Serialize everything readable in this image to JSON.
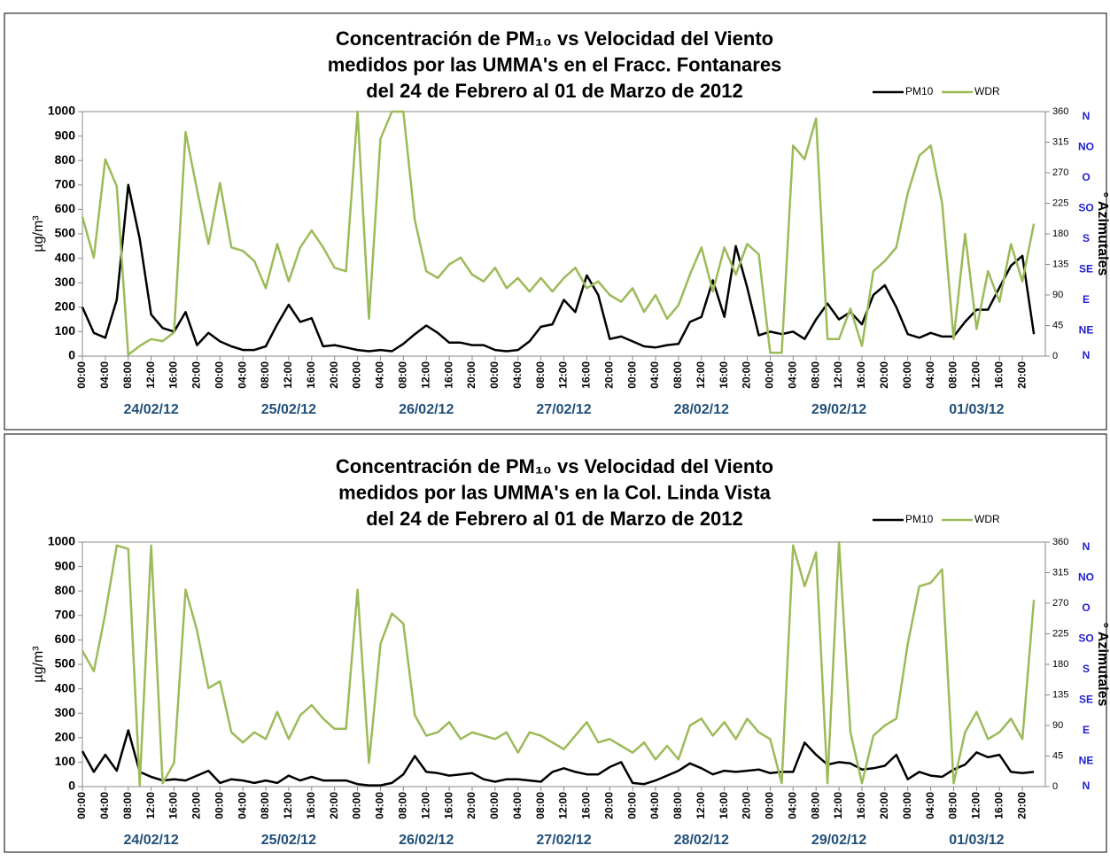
{
  "chart_data": [
    {
      "type": "line",
      "title": [
        "Concentración de PM₁₀ vs Velocidad del Viento",
        "medidos por las UMMA's en el Fracc. Fontanares",
        "del 24 de Febrero al 01 de Marzo de 2012"
      ],
      "y_label": "µg/m³",
      "y2_label": "° Azimutales",
      "categories": [
        "00:00",
        null,
        "04:00",
        null,
        "08:00",
        null,
        "12:00",
        null,
        "16:00",
        null,
        "20:00",
        null,
        "00:00",
        null,
        "04:00",
        null,
        "08:00",
        null,
        "12:00",
        null,
        "16:00",
        null,
        "20:00",
        null,
        "00:00",
        null,
        "04:00",
        null,
        "08:00",
        null,
        "12:00",
        null,
        "16:00",
        null,
        "20:00",
        null,
        "00:00",
        null,
        "04:00",
        null,
        "08:00",
        null,
        "12:00",
        null,
        "16:00",
        null,
        "20:00",
        null,
        "00:00",
        null,
        "04:00",
        null,
        "08:00",
        null,
        "12:00",
        null,
        "16:00",
        null,
        "20:00",
        null,
        "00:00",
        null,
        "04:00",
        null,
        "08:00",
        null,
        "12:00",
        null,
        "16:00",
        null,
        "20:00",
        null,
        "00:00",
        null,
        "04:00",
        null,
        "08:00",
        null,
        "12:00",
        null,
        "16:00",
        null,
        "20:00",
        null
      ],
      "groups": [
        "24/02/12",
        "25/02/12",
        "26/02/12",
        "27/02/12",
        "28/02/12",
        "29/02/12",
        "01/03/12"
      ],
      "series": [
        {
          "name": "PM10",
          "color": "#000000",
          "values": [
            200,
            95,
            75,
            230,
            700,
            480,
            170,
            115,
            100,
            180,
            45,
            95,
            60,
            40,
            25,
            25,
            40,
            130,
            210,
            140,
            155,
            40,
            45,
            35,
            25,
            20,
            25,
            20,
            50,
            90,
            125,
            95,
            55,
            55,
            45,
            45,
            25,
            20,
            25,
            60,
            120,
            130,
            230,
            180,
            330,
            250,
            70,
            80,
            60,
            40,
            35,
            45,
            50,
            140,
            160,
            310,
            160,
            450,
            280,
            85,
            100,
            90,
            100,
            70,
            150,
            215,
            150,
            180,
            130,
            250,
            290,
            200,
            90,
            75,
            95,
            80,
            80,
            140,
            190,
            190,
            280,
            370,
            410,
            90
          ]
        },
        {
          "name": "WDR",
          "color": "#9bbb59",
          "axis": "y2",
          "values": [
            205,
            145,
            290,
            250,
            2,
            15,
            25,
            22,
            35,
            330,
            245,
            165,
            255,
            160,
            155,
            140,
            100,
            165,
            110,
            160,
            185,
            160,
            130,
            125,
            360,
            55,
            320,
            360,
            360,
            200,
            125,
            115,
            135,
            145,
            120,
            110,
            130,
            100,
            115,
            95,
            115,
            95,
            115,
            130,
            100,
            110,
            90,
            80,
            100,
            65,
            90,
            55,
            75,
            120,
            160,
            95,
            160,
            120,
            165,
            150,
            5,
            5,
            310,
            290,
            350,
            25,
            25,
            70,
            15,
            125,
            140,
            160,
            240,
            295,
            310,
            225,
            25,
            180,
            40,
            125,
            80,
            165,
            110,
            195
          ]
        }
      ],
      "ylim": [
        0,
        1000
      ],
      "yticks": [
        0,
        100,
        200,
        300,
        400,
        500,
        600,
        700,
        800,
        900,
        1000
      ],
      "y2lim": [
        0,
        360
      ],
      "y2ticks": [
        0,
        45,
        90,
        135,
        180,
        225,
        270,
        315,
        360
      ],
      "y2_directions": [
        "N",
        "NE",
        "E",
        "SE",
        "S",
        "SO",
        "O",
        "NO",
        "N"
      ]
    },
    {
      "type": "line",
      "title": [
        "Concentración de PM₁₀ vs Velocidad del Viento",
        "medidos por las UMMA's en la Col. Linda Vista",
        "del 24 de Febrero al 01 de Marzo de 2012"
      ],
      "y_label": "µg/m³",
      "y2_label": "° Azimutales",
      "categories": [
        "00:00",
        null,
        "04:00",
        null,
        "08:00",
        null,
        "12:00",
        null,
        "16:00",
        null,
        "20:00",
        null,
        "00:00",
        null,
        "04:00",
        null,
        "08:00",
        null,
        "12:00",
        null,
        "16:00",
        null,
        "20:00",
        null,
        "00:00",
        null,
        "04:00",
        null,
        "08:00",
        null,
        "12:00",
        null,
        "16:00",
        null,
        "20:00",
        null,
        "00:00",
        null,
        "04:00",
        null,
        "08:00",
        null,
        "12:00",
        null,
        "16:00",
        null,
        "20:00",
        null,
        "00:00",
        null,
        "04:00",
        null,
        "08:00",
        null,
        "12:00",
        null,
        "16:00",
        null,
        "20:00",
        null,
        "00:00",
        null,
        "04:00",
        null,
        "08:00",
        null,
        "12:00",
        null,
        "16:00",
        null,
        "20:00",
        null,
        "00:00",
        null,
        "04:00",
        null,
        "08:00",
        null,
        "12:00",
        null,
        "16:00",
        null,
        "20:00",
        null
      ],
      "groups": [
        "24/02/12",
        "25/02/12",
        "26/02/12",
        "27/02/12",
        "28/02/12",
        "29/02/12",
        "01/03/12"
      ],
      "series": [
        {
          "name": "PM10",
          "color": "#000000",
          "values": [
            145,
            60,
            130,
            65,
            230,
            60,
            40,
            25,
            30,
            25,
            45,
            65,
            15,
            30,
            25,
            15,
            25,
            15,
            45,
            25,
            40,
            25,
            25,
            25,
            10,
            5,
            5,
            15,
            50,
            125,
            60,
            55,
            45,
            50,
            55,
            30,
            20,
            30,
            30,
            25,
            20,
            60,
            75,
            60,
            50,
            50,
            80,
            100,
            15,
            10,
            25,
            45,
            65,
            95,
            75,
            50,
            65,
            60,
            65,
            70,
            55,
            60,
            60,
            180,
            130,
            90,
            100,
            95,
            70,
            75,
            85,
            130,
            30,
            60,
            45,
            40,
            70,
            90,
            140,
            120,
            130,
            60,
            55,
            60
          ]
        },
        {
          "name": "WDR",
          "color": "#9bbb59",
          "axis": "y2",
          "values": [
            200,
            170,
            255,
            355,
            350,
            2,
            355,
            5,
            35,
            290,
            230,
            145,
            155,
            80,
            65,
            80,
            70,
            110,
            70,
            105,
            120,
            100,
            85,
            85,
            290,
            35,
            210,
            255,
            240,
            105,
            75,
            80,
            95,
            70,
            80,
            75,
            70,
            80,
            50,
            80,
            75,
            65,
            55,
            75,
            95,
            65,
            70,
            60,
            50,
            65,
            40,
            60,
            40,
            90,
            100,
            75,
            95,
            70,
            100,
            80,
            70,
            5,
            355,
            295,
            345,
            5,
            360,
            80,
            5,
            75,
            90,
            100,
            210,
            295,
            300,
            320,
            5,
            80,
            110,
            70,
            80,
            100,
            70,
            275
          ]
        }
      ],
      "ylim": [
        0,
        1000
      ],
      "yticks": [
        0,
        100,
        200,
        300,
        400,
        500,
        600,
        700,
        800,
        900,
        1000
      ],
      "y2lim": [
        0,
        360
      ],
      "y2ticks": [
        0,
        45,
        90,
        135,
        180,
        225,
        270,
        315,
        360
      ],
      "y2_directions": [
        "N",
        "NE",
        "E",
        "SE",
        "S",
        "SO",
        "O",
        "NO",
        "N"
      ]
    }
  ]
}
